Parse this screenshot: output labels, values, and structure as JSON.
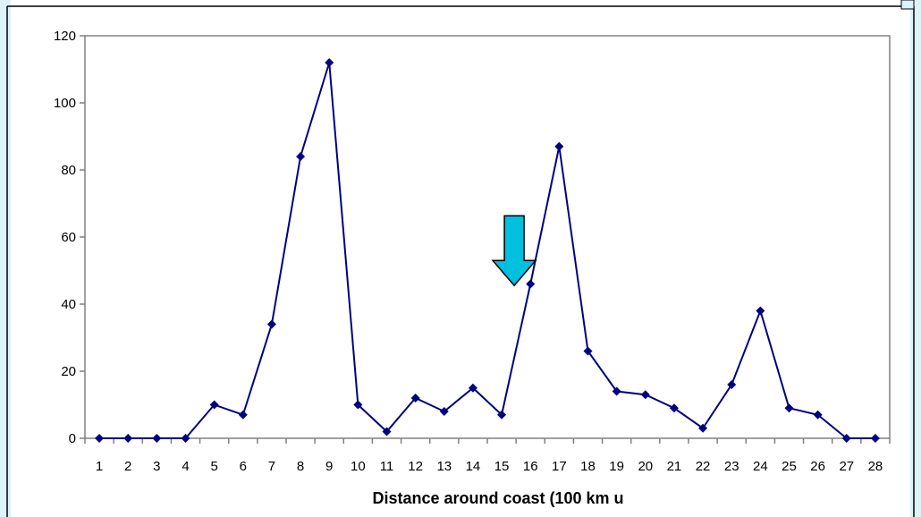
{
  "chart_data": {
    "type": "line",
    "xlabel": "Distance around coast (100 km u",
    "ylabel": "",
    "title": "",
    "categories": [
      "1",
      "2",
      "3",
      "4",
      "5",
      "6",
      "7",
      "8",
      "9",
      "10",
      "11",
      "12",
      "13",
      "14",
      "15",
      "16",
      "17",
      "18",
      "19",
      "20",
      "21",
      "22",
      "23",
      "24",
      "25",
      "26",
      "27",
      "28"
    ],
    "series": [
      {
        "values": [
          0,
          0,
          0,
          0,
          10,
          7,
          34,
          84,
          112,
          10,
          2,
          12,
          8,
          15,
          7,
          46,
          87,
          26,
          14,
          13,
          9,
          3,
          16,
          38,
          9,
          7,
          0,
          0
        ]
      }
    ],
    "ylim": [
      0,
      120
    ],
    "yticks": [
      0,
      20,
      40,
      60,
      80,
      100,
      120
    ],
    "grid": false,
    "legend": "none",
    "annotations": [
      {
        "type": "down-arrow",
        "at_category": "15",
        "at_value": 45
      }
    ],
    "colors": {
      "series": "#000080",
      "axis": "#808080",
      "arrow_fill": "#00C0E0",
      "arrow_stroke": "#000000",
      "frame_left_bg": "#DDF3FA"
    }
  }
}
